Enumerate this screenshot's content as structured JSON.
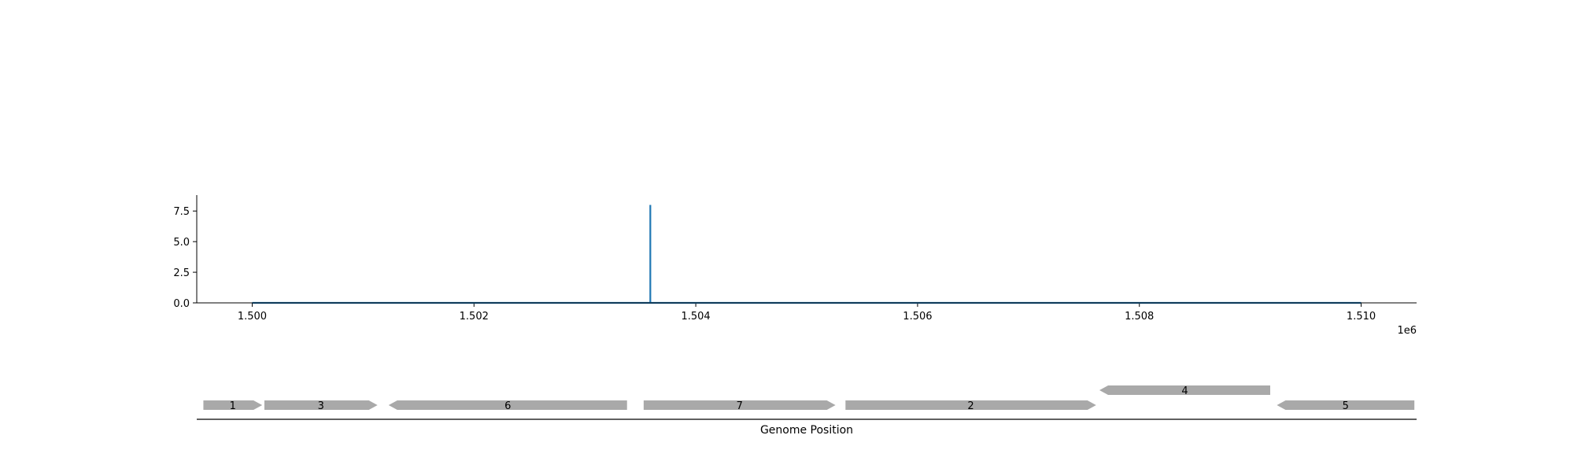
{
  "chart_data": [
    {
      "type": "line",
      "x": [
        1500000,
        1503590,
        1503590,
        1503590,
        1510000
      ],
      "series": [
        {
          "values": [
            0,
            0,
            8,
            0,
            0
          ],
          "color": "#1f77b4"
        }
      ],
      "xlim": [
        1499500,
        1510500
      ],
      "ylim": [
        0,
        8.8
      ],
      "xticks": [
        1500000,
        1502000,
        1504000,
        1506000,
        1508000,
        1510000
      ],
      "xtick_labels": [
        "1.500",
        "1.502",
        "1.504",
        "1.506",
        "1.508",
        "1.510"
      ],
      "yticks": [
        0,
        2.5,
        5,
        7.5
      ],
      "ytick_labels": [
        "0.0",
        "2.5",
        "5.0",
        "7.5"
      ],
      "x_offset_label": "1e6",
      "grid": false,
      "spines": [
        "left",
        "bottom"
      ]
    },
    {
      "type": "gene-track",
      "xlabel": "Genome Position",
      "features": [
        {
          "label": "1",
          "start": 1499560,
          "end": 1500090,
          "strand": 1,
          "row": 0
        },
        {
          "label": "3",
          "start": 1500110,
          "end": 1501130,
          "strand": 1,
          "row": 0
        },
        {
          "label": "6",
          "start": 1501230,
          "end": 1503380,
          "strand": -1,
          "row": 0
        },
        {
          "label": "7",
          "start": 1503530,
          "end": 1505260,
          "strand": 1,
          "row": 0
        },
        {
          "label": "2",
          "start": 1505350,
          "end": 1507610,
          "strand": 1,
          "row": 0
        },
        {
          "label": "4",
          "start": 1507640,
          "end": 1509180,
          "strand": -1,
          "row": 1
        },
        {
          "label": "5",
          "start": 1509240,
          "end": 1510480,
          "strand": -1,
          "row": 0
        }
      ],
      "feature_color": "#a9a9a9"
    }
  ]
}
